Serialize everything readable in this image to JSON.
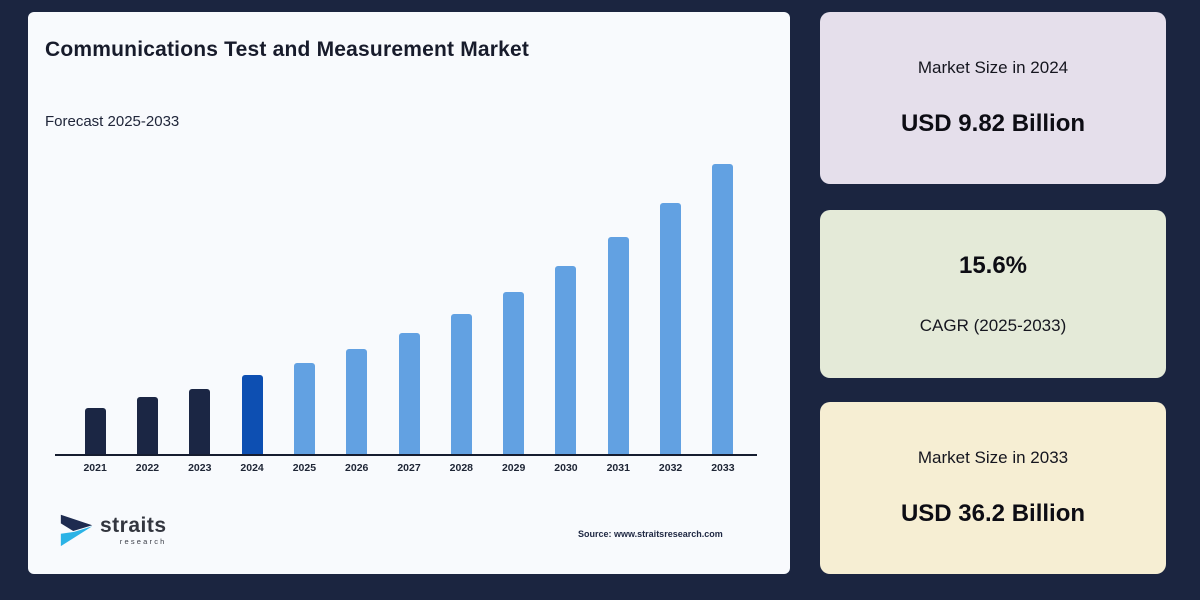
{
  "page": {
    "background_color": "#1b2540"
  },
  "chart_card": {
    "title": "Communications Test and Measurement Market",
    "subtitle": "Forecast 2025-2033",
    "source": "Source: www.straitsresearch.com",
    "logo": {
      "name": "straits",
      "subname": "research",
      "icon": "straits-arrow-icon",
      "icon_top_color": "#1e2b50",
      "icon_bottom_color": "#2bb3e6"
    },
    "background_color": "#f8fafd"
  },
  "chart_data": {
    "type": "bar",
    "title": "Communications Test and Measurement Market",
    "subtitle": "Forecast 2025-2033",
    "categories": [
      "2021",
      "2022",
      "2023",
      "2024",
      "2025",
      "2026",
      "2027",
      "2028",
      "2029",
      "2030",
      "2031",
      "2032",
      "2033"
    ],
    "values": [
      5.7,
      7.1,
      8.1,
      9.82,
      11.35,
      13.12,
      15.17,
      17.54,
      20.28,
      23.44,
      27.1,
      31.32,
      36.2
    ],
    "unit": "USD Billion",
    "xlabel": "",
    "ylabel": "",
    "ylim": [
      0,
      36.2
    ],
    "grid": false,
    "legend": "none",
    "y_axis_shown": false,
    "color_roles": [
      "historical",
      "historical",
      "historical",
      "base_year",
      "forecast",
      "forecast",
      "forecast",
      "forecast",
      "forecast",
      "forecast",
      "forecast",
      "forecast",
      "forecast"
    ],
    "bar_colors": {
      "historical": "#1b2644",
      "base_year": "#0d4fb2",
      "forecast": "#62a1e2"
    },
    "axis_line_color": "#161d30"
  },
  "stat_cards": [
    {
      "label": "Market Size in 2024",
      "value": "USD 9.82 Billion",
      "background": "#e5dfeb"
    },
    {
      "value": "15.6%",
      "label": "CAGR (2025-2033)",
      "background": "#e4ead8"
    },
    {
      "label": "Market Size in 2033",
      "value": "USD 36.2 Billion",
      "background": "#f6eed3"
    }
  ]
}
